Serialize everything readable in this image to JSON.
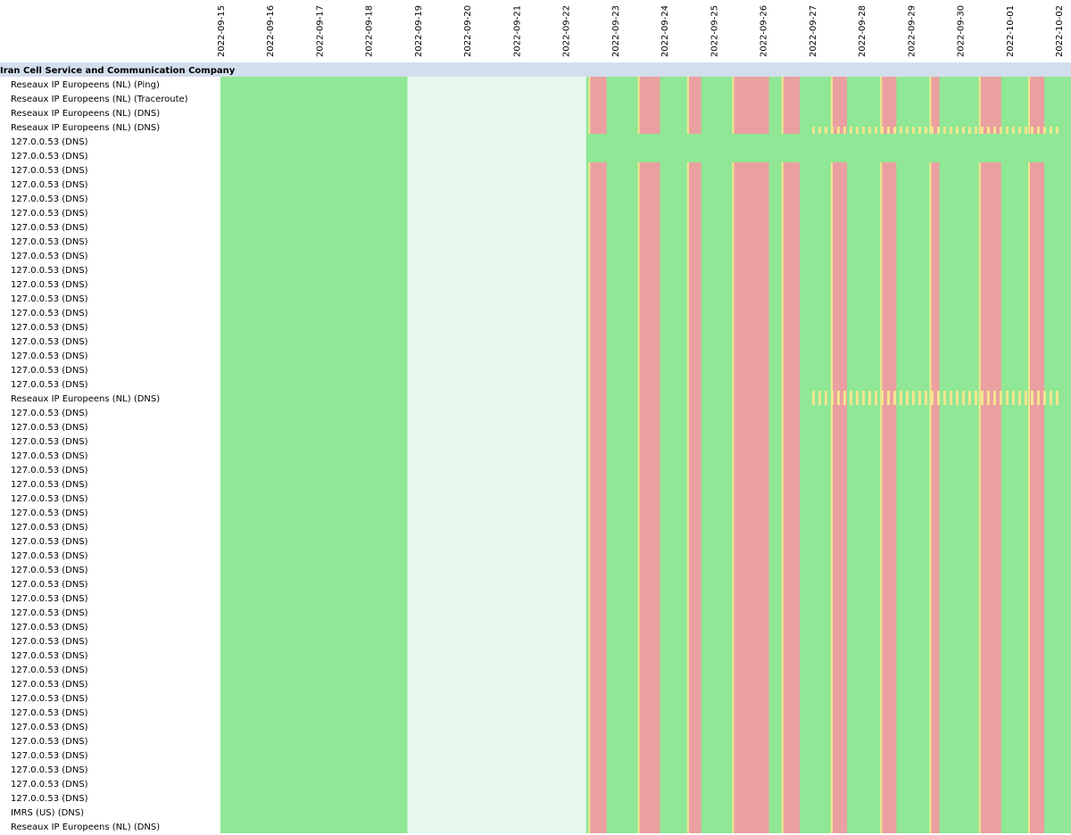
{
  "chart_data": {
    "type": "heatmap",
    "dates": [
      "2022-09-15",
      "2022-09-16",
      "2022-09-17",
      "2022-09-18",
      "2022-09-19",
      "2022-09-20",
      "2022-09-21",
      "2022-09-22",
      "2022-09-23",
      "2022-09-24",
      "2022-09-25",
      "2022-09-26",
      "2022-09-27",
      "2022-09-28",
      "2022-09-29",
      "2022-09-30",
      "2022-10-01",
      "2022-10-02"
    ],
    "x_range": [
      "2022-09-15T00:00",
      "2022-10-02T06:00"
    ],
    "group": "Iran Cell Service and Communication Company",
    "rows": [
      "Reseaux IP Europeens (NL) (Ping)",
      "Reseaux IP Europeens (NL) (Traceroute)",
      "Reseaux IP Europeens (NL) (DNS)",
      "Reseaux IP Europeens (NL) (DNS)",
      "127.0.0.53 (DNS)",
      "127.0.0.53 (DNS)",
      "127.0.0.53 (DNS)",
      "127.0.0.53 (DNS)",
      "127.0.0.53 (DNS)",
      "127.0.0.53 (DNS)",
      "127.0.0.53 (DNS)",
      "127.0.0.53 (DNS)",
      "127.0.0.53 (DNS)",
      "127.0.0.53 (DNS)",
      "127.0.0.53 (DNS)",
      "127.0.0.53 (DNS)",
      "127.0.0.53 (DNS)",
      "127.0.0.53 (DNS)",
      "127.0.0.53 (DNS)",
      "127.0.0.53 (DNS)",
      "127.0.0.53 (DNS)",
      "127.0.0.53 (DNS)",
      "Reseaux IP Europeens (NL) (DNS)",
      "127.0.0.53 (DNS)",
      "127.0.0.53 (DNS)",
      "127.0.0.53 (DNS)",
      "127.0.0.53 (DNS)",
      "127.0.0.53 (DNS)",
      "127.0.0.53 (DNS)",
      "127.0.0.53 (DNS)",
      "127.0.0.53 (DNS)",
      "127.0.0.53 (DNS)",
      "127.0.0.53 (DNS)",
      "127.0.0.53 (DNS)",
      "127.0.0.53 (DNS)",
      "127.0.0.53 (DNS)",
      "127.0.0.53 (DNS)",
      "127.0.0.53 (DNS)",
      "127.0.0.53 (DNS)",
      "127.0.0.53 (DNS)",
      "127.0.0.53 (DNS)",
      "127.0.0.53 (DNS)",
      "127.0.0.53 (DNS)",
      "127.0.0.53 (DNS)",
      "127.0.0.53 (DNS)",
      "127.0.0.53 (DNS)",
      "127.0.0.53 (DNS)",
      "127.0.0.53 (DNS)",
      "127.0.0.53 (DNS)",
      "127.0.0.53 (DNS)",
      "127.0.0.53 (DNS)",
      "IMRS (US) (DNS)",
      "Reseaux IP Europeens (NL) (DNS)"
    ],
    "no_data_period": [
      "2022-09-18T19:00",
      "2022-09-22T10:00"
    ],
    "status_colors": {
      "ok": "#90e795",
      "anomaly": "#eaa0a0",
      "partial": "#f5e58f",
      "no_data": "#e8f8ef"
    },
    "common_anomaly_periods": [
      [
        "2022-09-22T12:00",
        "2022-09-22T20:00"
      ],
      [
        "2022-09-23T12:00",
        "2022-09-23T22:00"
      ],
      [
        "2022-09-24T12:00",
        "2022-09-24T18:00"
      ],
      [
        "2022-09-25T10:00",
        "2022-09-26T03:00"
      ],
      [
        "2022-09-26T10:00",
        "2022-09-26T18:00"
      ],
      [
        "2022-09-27T10:00",
        "2022-09-27T17:00"
      ],
      [
        "2022-09-28T10:00",
        "2022-09-28T17:00"
      ],
      [
        "2022-09-29T10:00",
        "2022-09-29T14:00"
      ],
      [
        "2022-09-30T10:00",
        "2022-09-30T20:00"
      ],
      [
        "2022-10-01T10:00",
        "2022-10-01T17:00"
      ]
    ],
    "ok_rows_after_no_data": [
      4,
      5
    ],
    "partial_rows": [
      3,
      22
    ],
    "grid": false,
    "legend": "none"
  }
}
